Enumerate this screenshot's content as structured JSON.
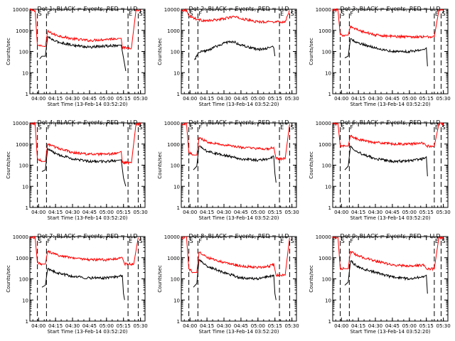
{
  "colors": {
    "events": "#000000",
    "lld": "#ff0000",
    "axes": "#000000",
    "background": "#ffffff"
  },
  "common": {
    "ylabel": "Counts/sec",
    "xlabel": "Start Time (13-Feb-14 03:52:20)",
    "x_ticks": [
      "04:00",
      "04:15",
      "04:30",
      "04:45",
      "05:00",
      "05:15",
      "05:30"
    ],
    "y_ticks": [
      "1",
      "10",
      "100",
      "1000",
      "10000"
    ]
  },
  "chart_data": [
    {
      "type": "line",
      "title": "Det 1: BLACK = Events, RED = LLD",
      "flags": [
        "S",
        "F",
        "E",
        "S"
      ],
      "ylim": [
        1,
        10000
      ],
      "y_scale": "log",
      "x_range": [
        "03:52:20",
        "05:34"
      ],
      "dashed_lines_x": [
        "03:59",
        "04:07",
        "05:19",
        "05:28"
      ],
      "series": [
        {
          "color": "#ff0000",
          "x": [
            "03:52",
            "03:57",
            "03:59",
            "04:03",
            "04:06",
            "04:08",
            "04:15",
            "04:30",
            "04:45",
            "05:00",
            "05:10",
            "05:13",
            "05:14",
            "05:18",
            "05:22",
            "05:26",
            "05:30"
          ],
          "y": [
            9000,
            9000,
            200,
            180,
            170,
            900,
            600,
            400,
            330,
            380,
            420,
            420,
            150,
            150,
            150,
            9000,
            9000
          ]
        },
        {
          "color": "#000000",
          "x": [
            "04:01",
            "04:03",
            "04:06",
            "04:08",
            "04:15",
            "04:30",
            "04:45",
            "05:00",
            "05:10",
            "05:13",
            "05:16",
            "05:17"
          ],
          "y": [
            45,
            60,
            60,
            500,
            300,
            200,
            160,
            180,
            200,
            200,
            25,
            12
          ]
        }
      ]
    },
    {
      "type": "line",
      "title": "Det 2: BLACK = Events, RED = LLD",
      "flags": [
        "S",
        "F",
        "E",
        "S"
      ],
      "ylim": [
        1,
        10000
      ],
      "y_scale": "log",
      "x_range": [
        "03:52:20",
        "05:34"
      ],
      "dashed_lines_x": [
        "03:59",
        "04:07",
        "05:19",
        "05:28"
      ],
      "series": [
        {
          "color": "#ff0000",
          "x": [
            "03:52",
            "03:57",
            "03:59",
            "04:03",
            "04:07",
            "04:15",
            "04:30",
            "04:38",
            "04:45",
            "05:00",
            "05:10",
            "05:13",
            "05:20",
            "05:24",
            "05:28"
          ],
          "y": [
            9000,
            9000,
            5000,
            4000,
            3200,
            2800,
            3500,
            4500,
            3600,
            2500,
            2600,
            2600,
            2500,
            2500,
            9000
          ]
        },
        {
          "color": "#000000",
          "x": [
            "04:04",
            "04:08",
            "04:15",
            "04:30",
            "04:38",
            "04:45",
            "05:00",
            "05:10",
            "05:13",
            "05:14",
            "05:15"
          ],
          "y": [
            40,
            90,
            110,
            250,
            300,
            200,
            120,
            150,
            180,
            150,
            60
          ]
        }
      ]
    },
    {
      "type": "line",
      "title": "Det 3: BLACK = Events, RED = LLD",
      "flags": [
        "S",
        "F",
        "E",
        "S"
      ],
      "ylim": [
        1,
        10000
      ],
      "y_scale": "log",
      "x_range": [
        "03:52:20",
        "05:34"
      ],
      "dashed_lines_x": [
        "03:59",
        "04:07",
        "05:22",
        "05:28"
      ],
      "series": [
        {
          "color": "#ff0000",
          "x": [
            "03:52",
            "03:57",
            "03:59",
            "04:03",
            "04:06",
            "04:08",
            "04:15",
            "04:30",
            "04:45",
            "05:00",
            "05:13",
            "05:15",
            "05:22",
            "05:26",
            "05:30"
          ],
          "y": [
            9000,
            9000,
            600,
            600,
            600,
            1600,
            1000,
            600,
            520,
            500,
            500,
            500,
            500,
            9000,
            9000
          ]
        },
        {
          "color": "#000000",
          "x": [
            "04:03",
            "04:06",
            "04:08",
            "04:15",
            "04:30",
            "04:45",
            "05:00",
            "05:13",
            "05:15",
            "05:16"
          ],
          "y": [
            50,
            60,
            400,
            250,
            150,
            100,
            100,
            120,
            150,
            20
          ]
        }
      ]
    },
    {
      "type": "line",
      "title": "Det 4: BLACK = Events, RED = LLD",
      "flags": [
        "S",
        "F",
        "E",
        "S"
      ],
      "ylim": [
        1,
        10000
      ],
      "y_scale": "log",
      "x_range": [
        "03:52:20",
        "05:34"
      ],
      "dashed_lines_x": [
        "03:59",
        "04:07",
        "05:19",
        "05:28"
      ],
      "series": [
        {
          "color": "#ff0000",
          "x": [
            "03:52",
            "03:57",
            "03:59",
            "04:03",
            "04:06",
            "04:08",
            "04:15",
            "04:30",
            "04:45",
            "05:00",
            "05:10",
            "05:13",
            "05:14",
            "05:18",
            "05:22",
            "05:26",
            "05:30"
          ],
          "y": [
            9000,
            9000,
            200,
            150,
            150,
            1000,
            700,
            400,
            330,
            320,
            380,
            450,
            130,
            130,
            130,
            9000,
            9000
          ]
        },
        {
          "color": "#000000",
          "x": [
            "04:03",
            "04:06",
            "04:08",
            "04:15",
            "04:30",
            "04:45",
            "05:00",
            "05:10",
            "05:13",
            "05:15",
            "05:17"
          ],
          "y": [
            50,
            60,
            600,
            350,
            200,
            150,
            150,
            170,
            180,
            25,
            10
          ]
        }
      ]
    },
    {
      "type": "line",
      "title": "Det 5: BLACK = Events, RED = LLD",
      "flags": [
        "S",
        "F",
        "E",
        "S"
      ],
      "ylim": [
        1,
        10000
      ],
      "y_scale": "log",
      "x_range": [
        "03:52:20",
        "05:34"
      ],
      "dashed_lines_x": [
        "03:59",
        "04:07",
        "05:19",
        "05:28"
      ],
      "series": [
        {
          "color": "#ff0000",
          "x": [
            "03:52",
            "03:57",
            "03:59",
            "04:03",
            "04:06",
            "04:08",
            "04:15",
            "04:30",
            "04:45",
            "05:00",
            "05:10",
            "05:14",
            "05:16",
            "05:20",
            "05:24",
            "05:28"
          ],
          "y": [
            9000,
            9000,
            400,
            300,
            300,
            2000,
            1300,
            900,
            700,
            600,
            600,
            700,
            200,
            200,
            200,
            9000
          ]
        },
        {
          "color": "#000000",
          "x": [
            "04:03",
            "04:06",
            "04:08",
            "04:15",
            "04:30",
            "04:45",
            "05:00",
            "05:10",
            "05:14",
            "05:15",
            "05:16"
          ],
          "y": [
            60,
            90,
            800,
            450,
            300,
            200,
            170,
            200,
            250,
            40,
            15
          ]
        }
      ]
    },
    {
      "type": "line",
      "title": "Det 6: BLACK = Events, RED = LLD",
      "flags": [
        "S",
        "F",
        "E",
        "S"
      ],
      "ylim": [
        1,
        10000
      ],
      "y_scale": "log",
      "x_range": [
        "03:52:20",
        "05:34"
      ],
      "dashed_lines_x": [
        "03:59",
        "04:07",
        "05:22",
        "05:28"
      ],
      "series": [
        {
          "color": "#ff0000",
          "x": [
            "03:52",
            "03:57",
            "03:59",
            "04:03",
            "04:06",
            "04:08",
            "04:15",
            "04:30",
            "04:45",
            "05:00",
            "05:13",
            "05:15",
            "05:22",
            "05:26",
            "05:30"
          ],
          "y": [
            9000,
            9000,
            800,
            800,
            800,
            2500,
            1600,
            1200,
            1000,
            1000,
            1100,
            800,
            800,
            9000,
            9000
          ]
        },
        {
          "color": "#000000",
          "x": [
            "04:03",
            "04:06",
            "04:08",
            "04:15",
            "04:30",
            "04:45",
            "05:00",
            "05:13",
            "05:15",
            "05:16"
          ],
          "y": [
            60,
            90,
            800,
            400,
            200,
            150,
            160,
            200,
            250,
            30
          ]
        }
      ]
    },
    {
      "type": "line",
      "title": "Det 7: BLACK = Events, RED = LLD",
      "flags": [
        "S",
        "F",
        "E",
        "S"
      ],
      "ylim": [
        1,
        10000
      ],
      "y_scale": "log",
      "x_range": [
        "03:52:20",
        "05:34"
      ],
      "dashed_lines_x": [
        "03:59",
        "04:07",
        "05:19",
        "05:28"
      ],
      "series": [
        {
          "color": "#ff0000",
          "x": [
            "03:52",
            "03:57",
            "03:59",
            "04:03",
            "04:06",
            "04:08",
            "04:15",
            "04:30",
            "04:45",
            "05:00",
            "05:10",
            "05:14",
            "05:16",
            "05:20",
            "05:24",
            "05:28"
          ],
          "y": [
            9000,
            9000,
            600,
            500,
            500,
            2000,
            1400,
            1000,
            800,
            800,
            900,
            1000,
            500,
            500,
            500,
            9000
          ]
        },
        {
          "color": "#000000",
          "x": [
            "04:03",
            "04:06",
            "04:08",
            "04:15",
            "04:30",
            "04:45",
            "05:00",
            "05:10",
            "05:14",
            "05:15",
            "05:16"
          ],
          "y": [
            40,
            50,
            300,
            200,
            130,
            110,
            110,
            130,
            150,
            20,
            10
          ]
        }
      ]
    },
    {
      "type": "line",
      "title": "Det 8: BLACK = Events, RED = LLD",
      "flags": [
        "S",
        "F",
        "E",
        "S"
      ],
      "ylim": [
        1,
        10000
      ],
      "y_scale": "log",
      "x_range": [
        "03:52:20",
        "05:34"
      ],
      "dashed_lines_x": [
        "03:59",
        "04:07",
        "05:19",
        "05:28"
      ],
      "series": [
        {
          "color": "#ff0000",
          "x": [
            "03:52",
            "03:57",
            "03:59",
            "04:03",
            "04:06",
            "04:08",
            "04:15",
            "04:30",
            "04:45",
            "05:00",
            "05:10",
            "05:14",
            "05:16",
            "05:20",
            "05:24",
            "05:28"
          ],
          "y": [
            9000,
            9000,
            300,
            200,
            200,
            1800,
            1000,
            600,
            400,
            350,
            400,
            500,
            150,
            150,
            150,
            9000
          ]
        },
        {
          "color": "#000000",
          "x": [
            "04:03",
            "04:06",
            "04:08",
            "04:15",
            "04:30",
            "04:45",
            "05:00",
            "05:10",
            "05:14",
            "05:15",
            "05:16"
          ],
          "y": [
            40,
            60,
            800,
            400,
            200,
            110,
            100,
            130,
            150,
            20,
            10
          ]
        }
      ]
    },
    {
      "type": "line",
      "title": "Det 9: BLACK = Events, RED = LLD",
      "flags": [
        "S",
        "F",
        "E",
        "S"
      ],
      "ylim": [
        1,
        10000
      ],
      "y_scale": "log",
      "x_range": [
        "03:52:20",
        "05:34"
      ],
      "dashed_lines_x": [
        "03:59",
        "04:07",
        "05:22",
        "05:28"
      ],
      "series": [
        {
          "color": "#ff0000",
          "x": [
            "03:52",
            "03:57",
            "03:59",
            "04:03",
            "04:06",
            "04:08",
            "04:15",
            "04:30",
            "04:45",
            "05:00",
            "05:13",
            "05:15",
            "05:22",
            "05:26",
            "05:30"
          ],
          "y": [
            9000,
            9000,
            300,
            300,
            300,
            2000,
            1200,
            700,
            450,
            400,
            450,
            300,
            300,
            9000,
            9000
          ]
        },
        {
          "color": "#000000",
          "x": [
            "04:03",
            "04:06",
            "04:08",
            "04:15",
            "04:30",
            "04:45",
            "05:00",
            "05:13",
            "05:15",
            "05:16"
          ],
          "y": [
            50,
            70,
            700,
            350,
            200,
            120,
            100,
            130,
            150,
            20
          ]
        }
      ]
    }
  ]
}
